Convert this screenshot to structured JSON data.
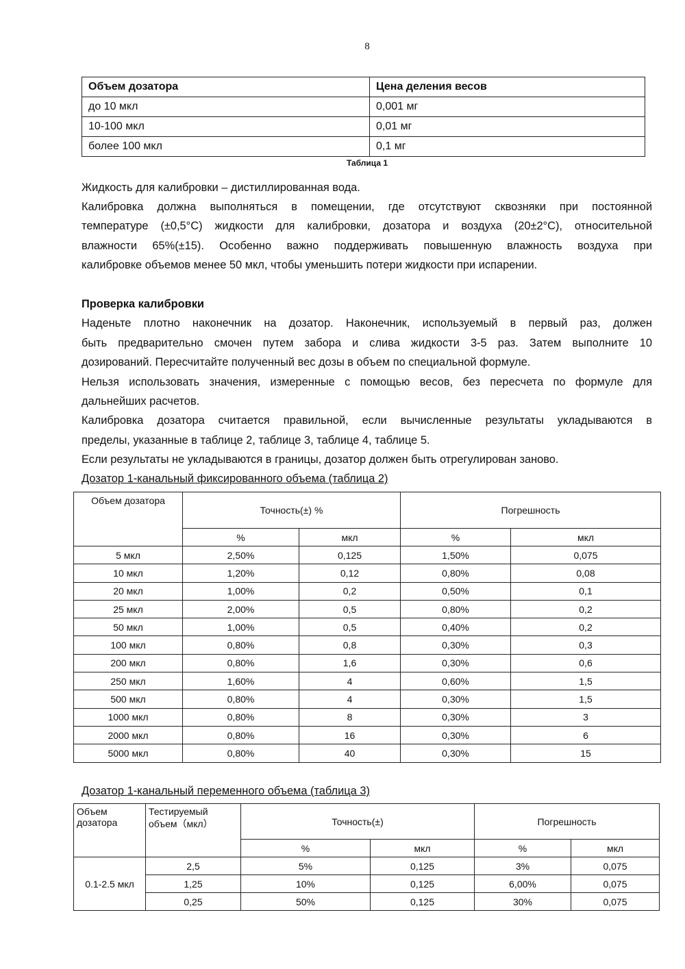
{
  "page_number": "8",
  "table1": {
    "headers": [
      "Объем дозатора",
      "Цена деления весов"
    ],
    "rows": [
      [
        "до 10 мкл",
        "0,001 мг"
      ],
      [
        "10-100 мкл",
        "0,01 мг"
      ],
      [
        "более 100 мкл",
        "0,1 мг"
      ]
    ],
    "caption": "Таблица 1"
  },
  "text_lines": [
    {
      "text": "Жидкость для калибровки – дистиллированная вода.",
      "last": true
    },
    {
      "text": "Калибровка должна выполняться в помещении, где отсутствуют сквозняки при постоянной",
      "last": false
    },
    {
      "text": "температуре (±0,5°С) жидкости для калибровки, дозатора и воздуха (20±2°С), относительной",
      "last": false
    },
    {
      "text": "влажности 65%(±15). Особенно важно поддерживать повышенную влажность воздуха при",
      "last": false
    },
    {
      "text": "калибровке объемов менее 50 мкл, чтобы уменьшить потери жидкости при испарении.",
      "last": true
    },
    {
      "text": "Проверка калибровки",
      "last": true,
      "heading": true
    },
    {
      "text": "Наденьте плотно наконечник на дозатор. Наконечник, используемый в первый раз, должен",
      "last": false
    },
    {
      "text": "быть предварительно смочен путем забора и слива жидкости 3-5 раз. Затем выполните 10",
      "last": false
    },
    {
      "text": "дозирований. Пересчитайте полученный вес дозы в объем по специальной формуле.",
      "last": true
    },
    {
      "text": "Нельзя использовать значения, измеренные с помощью весов, без пересчета по формуле для",
      "last": false
    },
    {
      "text": "дальнейших расчетов.",
      "last": true
    },
    {
      "text": "Калибровка дозатора считается правильной, если вычисленные результаты укладываются в",
      "last": false
    },
    {
      "text": "пределы, указанные в таблице 2, таблице 3, таблице 4, таблице 5.",
      "last": true
    },
    {
      "text": "Если результаты не укладываются в границы, дозатор должен быть отрегулирован заново.",
      "last": true
    }
  ],
  "table2": {
    "caption": "Дозатор 1-канальный фиксированного объема (таблица 2)",
    "header_volume": "Объем дозатора",
    "header_accuracy": "Точность(±) %",
    "header_error": "Погрешность",
    "sub_headers": [
      "%",
      "мкл",
      "%",
      "мкл"
    ],
    "rows": [
      [
        "5 мкл",
        "2,50%",
        "0,125",
        "1,50%",
        "0,075"
      ],
      [
        "10 мкл",
        "1,20%",
        "0,12",
        "0,80%",
        "0,08"
      ],
      [
        "20 мкл",
        "1,00%",
        "0,2",
        "0,50%",
        "0,1"
      ],
      [
        "25 мкл",
        "2,00%",
        "0,5",
        "0,80%",
        "0,2"
      ],
      [
        "50 мкл",
        "1,00%",
        "0,5",
        "0,40%",
        "0,2"
      ],
      [
        "100 мкл",
        "0,80%",
        "0,8",
        "0,30%",
        "0,3"
      ],
      [
        "200 мкл",
        "0,80%",
        "1,6",
        "0,30%",
        "0,6"
      ],
      [
        "250 мкл",
        "1,60%",
        "4",
        "0,60%",
        "1,5"
      ],
      [
        "500 мкл",
        "0,80%",
        "4",
        "0,30%",
        "1,5"
      ],
      [
        "1000 мкл",
        "0,80%",
        "8",
        "0,30%",
        "3"
      ],
      [
        "2000 мкл",
        "0,80%",
        "16",
        "0,30%",
        "6"
      ],
      [
        "5000 мкл",
        "0,80%",
        "40",
        "0,30%",
        "15"
      ]
    ]
  },
  "table3": {
    "caption": "Дозатор 1-канальный переменного объема (таблица 3)",
    "header_volume": "Объем дозатора",
    "header_tested": "Тестируемый объем（мкл）",
    "header_accuracy": "Точность(±)",
    "header_error": "Погрешность",
    "sub_headers": [
      "%",
      "мкл",
      "%",
      "мкл"
    ],
    "group_volume": "0.1-2.5 мкл",
    "rows": [
      [
        "2,5",
        "5%",
        "0,125",
        "3%",
        "0,075"
      ],
      [
        "1,25",
        "10%",
        "0,125",
        "6,00%",
        "0,075"
      ],
      [
        "0,25",
        "50%",
        "0,125",
        "30%",
        "0,075"
      ]
    ]
  }
}
